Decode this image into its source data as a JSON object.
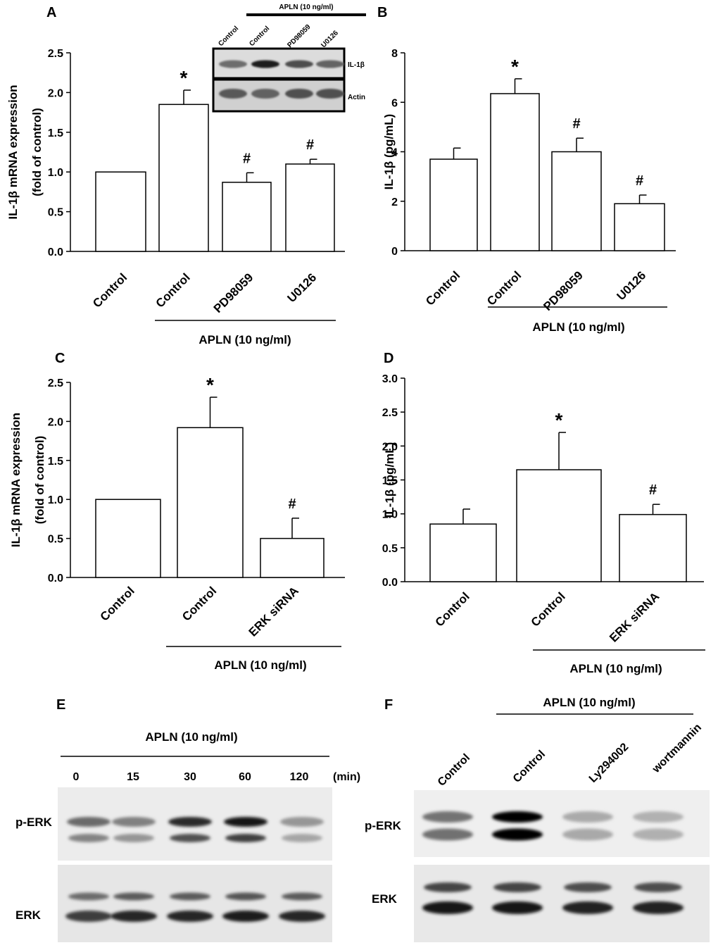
{
  "panels": {
    "A": {
      "label": "A"
    },
    "B": {
      "label": "B"
    },
    "C": {
      "label": "C"
    },
    "D": {
      "label": "D"
    },
    "E": {
      "label": "E"
    },
    "F": {
      "label": "F"
    }
  },
  "treatment_label": "APLN (10 ng/ml)",
  "chart_data": [
    {
      "panel": "A",
      "type": "bar",
      "categories": [
        "Control",
        "Control",
        "PD98059",
        "U0126"
      ],
      "values": [
        1.0,
        1.85,
        0.87,
        1.1
      ],
      "errors": [
        0,
        0.18,
        0.12,
        0.06
      ],
      "annotations": [
        "",
        "*",
        "#",
        "#"
      ],
      "ylabel": [
        "IL-1β mRNA expression",
        "(fold of control)"
      ],
      "ylim": [
        0,
        2.5
      ],
      "yticks": [
        "0.0",
        "0.5",
        "1.0",
        "1.5",
        "2.0",
        "2.5"
      ],
      "group_label": "APLN (10 ng/ml)",
      "inset": {
        "header": "APLN (10 ng/ml)",
        "lanes": [
          "Control",
          "Control",
          "PD98059",
          "U0126"
        ],
        "rows": [
          "IL-1β",
          "Actin"
        ],
        "il1b_intensity": [
          0.55,
          0.95,
          0.7,
          0.6
        ],
        "actin_intensity": [
          0.7,
          0.65,
          0.75,
          0.75
        ]
      }
    },
    {
      "panel": "B",
      "type": "bar",
      "categories": [
        "Control",
        "Control",
        "PD98059",
        "U0126"
      ],
      "values": [
        3.7,
        6.35,
        4.0,
        1.9
      ],
      "errors": [
        0.45,
        0.6,
        0.55,
        0.35
      ],
      "annotations": [
        "",
        "*",
        "#",
        "#"
      ],
      "ylabel": [
        "IL-1β (pg/mL)"
      ],
      "ylim": [
        0,
        8
      ],
      "yticks": [
        "0",
        "2",
        "4",
        "6",
        "8"
      ],
      "group_label": "APLN (10 ng/ml)"
    },
    {
      "panel": "C",
      "type": "bar",
      "categories": [
        "Control",
        "Control",
        "ERK siRNA"
      ],
      "values": [
        1.0,
        1.92,
        0.5
      ],
      "errors": [
        0,
        0.39,
        0.26
      ],
      "annotations": [
        "",
        "*",
        "#"
      ],
      "ylabel": [
        "IL-1β mRNA expression",
        "(fold of control)"
      ],
      "ylim": [
        0,
        2.5
      ],
      "yticks": [
        "0.0",
        "0.5",
        "1.0",
        "1.5",
        "2.0",
        "2.5"
      ],
      "group_label": "APLN (10 ng/ml)"
    },
    {
      "panel": "D",
      "type": "bar",
      "categories": [
        "Control",
        "Control",
        "ERK siRNA"
      ],
      "values": [
        0.85,
        1.65,
        0.99
      ],
      "errors": [
        0.22,
        0.55,
        0.15
      ],
      "annotations": [
        "",
        "*",
        "#"
      ],
      "ylabel": [
        "IL-1β (pg/mL)"
      ],
      "ylim": [
        0,
        3.0
      ],
      "yticks": [
        "0.0",
        "0.5",
        "1.0",
        "1.5",
        "2.0",
        "2.5",
        "3.0"
      ],
      "group_label": "APLN (10 ng/ml)"
    }
  ],
  "blot_E": {
    "header": "APLN (10 ng/ml)",
    "times": [
      "0",
      "15",
      "30",
      "60",
      "120"
    ],
    "unit": "(min)",
    "rows": [
      "p-ERK",
      "ERK"
    ],
    "perk_intensity": [
      0.55,
      0.45,
      0.85,
      0.95,
      0.35
    ],
    "erk_intensity": [
      0.75,
      0.85,
      0.85,
      0.9,
      0.85
    ]
  },
  "blot_F": {
    "header": "APLN (10 ng/ml)",
    "lanes": [
      "Control",
      "Control",
      "Ly294002",
      "wortmannin"
    ],
    "rows": [
      "p-ERK",
      "ERK"
    ],
    "perk_intensity": [
      0.5,
      1.0,
      0.25,
      0.22
    ],
    "erk_intensity": [
      0.9,
      0.9,
      0.85,
      0.85
    ]
  }
}
